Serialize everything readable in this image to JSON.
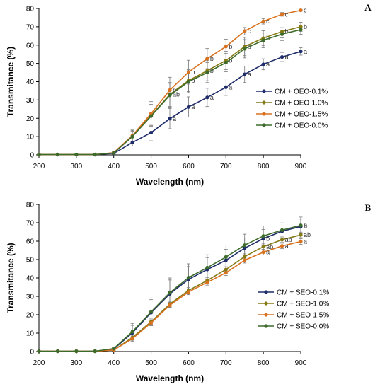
{
  "chart_data": [
    {
      "type": "line",
      "panel_label": "A",
      "xlabel": "Wavelength (nm)",
      "ylabel": "Transmitance (%)",
      "xlim": [
        200,
        900
      ],
      "ylim": [
        0,
        80
      ],
      "x_ticks": [
        "200",
        "300",
        "400",
        "500",
        "600",
        "700",
        "800",
        "900"
      ],
      "y_ticks": [
        "0",
        "10",
        "20",
        "30",
        "40",
        "50",
        "60",
        "70",
        "80"
      ],
      "grid": false,
      "legend_position": "right-middle",
      "x": [
        200,
        250,
        300,
        350,
        400,
        450,
        500,
        550,
        600,
        650,
        700,
        750,
        800,
        850,
        900
      ],
      "series": [
        {
          "name": "CM + OEO-0.1%",
          "color": "#1f2d6b",
          "values": [
            0.2,
            0.2,
            0.2,
            0.2,
            0.8,
            6.8,
            12.2,
            19.8,
            26.2,
            31.4,
            37.0,
            44.0,
            49.5,
            53.5,
            56.5
          ],
          "errors": [
            0,
            0,
            0,
            0,
            0.5,
            2.0,
            4.5,
            5.5,
            5.5,
            5.0,
            4.5,
            4.5,
            3.0,
            2.5,
            2.0
          ],
          "sig_labels": [
            "",
            "",
            "",
            "",
            "",
            "",
            "",
            "a",
            "a",
            "a",
            "a",
            "a",
            "a",
            "a",
            "a"
          ]
        },
        {
          "name": "CM + OEO-1.0%",
          "color": "#857a14",
          "values": [
            0.2,
            0.2,
            0.2,
            0.2,
            1.2,
            10.2,
            21.6,
            33.0,
            40.6,
            46.0,
            51.6,
            59.2,
            63.8,
            67.4,
            70.0
          ],
          "errors": [
            0,
            0,
            0,
            0,
            0.5,
            3.0,
            6.0,
            6.5,
            6.0,
            5.5,
            5.0,
            5.0,
            4.0,
            3.5,
            2.5
          ],
          "sig_labels": [
            "",
            "",
            "",
            "",
            "",
            "",
            "",
            "ab",
            "b",
            "b",
            "b",
            "b",
            "b",
            "b",
            "b"
          ]
        },
        {
          "name": "CM + OEO-1.5%",
          "color": "#d9721f",
          "values": [
            0.2,
            0.2,
            0.2,
            0.2,
            1.2,
            10.6,
            22.6,
            35.4,
            45.2,
            52.6,
            59.2,
            67.6,
            73.0,
            76.8,
            79.0
          ],
          "errors": [
            0,
            0,
            0,
            0,
            0.5,
            3.0,
            6.5,
            7.0,
            6.5,
            5.5,
            4.0,
            2.0,
            1.5,
            1.0,
            0.5
          ],
          "sig_labels": [
            "",
            "",
            "",
            "",
            "",
            "",
            "",
            "b",
            "b",
            "b",
            "b",
            "c",
            "c",
            "c",
            "c"
          ]
        },
        {
          "name": "CM + OEO-0.0%",
          "color": "#3d6b2b",
          "values": [
            0.2,
            0.2,
            0.2,
            0.2,
            1.0,
            10.0,
            21.2,
            32.6,
            40.0,
            45.0,
            50.4,
            58.0,
            62.6,
            66.0,
            68.4
          ],
          "errors": [
            0,
            0,
            0,
            0,
            0.5,
            3.0,
            6.0,
            6.5,
            6.0,
            5.5,
            5.0,
            5.0,
            4.0,
            3.5,
            2.5
          ],
          "sig_labels": [
            "",
            "",
            "",
            "",
            "",
            "",
            "",
            "",
            "",
            "",
            "",
            "",
            "",
            "",
            ""
          ]
        }
      ]
    },
    {
      "type": "line",
      "panel_label": "B",
      "xlabel": "Wavelength (nm)",
      "ylabel": "Transmitance (%)",
      "xlim": [
        200,
        900
      ],
      "ylim": [
        0,
        80
      ],
      "x_ticks": [
        "200",
        "300",
        "400",
        "500",
        "600",
        "700",
        "800",
        "900"
      ],
      "y_ticks": [
        "0",
        "10",
        "20",
        "30",
        "40",
        "50",
        "60",
        "70",
        "80"
      ],
      "grid": false,
      "legend_position": "right-middle",
      "x": [
        200,
        250,
        300,
        350,
        400,
        450,
        500,
        550,
        600,
        650,
        700,
        750,
        800,
        850,
        900
      ],
      "series": [
        {
          "name": "CM + SEO-0.1%",
          "color": "#1f2d6b",
          "values": [
            0.2,
            0.2,
            0.2,
            0.2,
            1.4,
            10.2,
            21.2,
            31.4,
            39.2,
            44.6,
            49.6,
            56.2,
            61.4,
            65.4,
            68.0
          ],
          "errors": [
            0,
            0,
            0,
            0,
            0.5,
            4.0,
            7.0,
            7.5,
            7.0,
            6.5,
            6.0,
            5.5,
            5.0,
            4.5,
            4.0
          ],
          "sig_labels": [
            "",
            "",
            "",
            "",
            "",
            "",
            "",
            "",
            "",
            "",
            "",
            "",
            "b",
            "",
            "b"
          ]
        },
        {
          "name": "CM + SEO-1.0%",
          "color": "#857a14",
          "values": [
            0.2,
            0.2,
            0.2,
            0.2,
            0.8,
            7.6,
            16.2,
            25.8,
            33.2,
            38.6,
            44.6,
            51.6,
            57.0,
            60.8,
            63.4
          ],
          "errors": [
            0,
            0,
            0,
            0,
            0.5,
            1.5,
            1.5,
            1.5,
            1.5,
            1.5,
            1.5,
            1.5,
            1.5,
            1.5,
            1.5
          ],
          "sig_labels": [
            "",
            "",
            "",
            "",
            "",
            "",
            "",
            "",
            "",
            "",
            "",
            "",
            "ab",
            "ab",
            "ab"
          ]
        },
        {
          "name": "CM + SEO-1.5%",
          "color": "#d9721f",
          "values": [
            0.2,
            0.2,
            0.2,
            0.2,
            0.8,
            7.0,
            15.6,
            25.2,
            32.4,
            37.6,
            42.8,
            49.6,
            54.0,
            57.4,
            59.8
          ],
          "errors": [
            0,
            0,
            0,
            0,
            0.5,
            1.5,
            1.5,
            1.5,
            1.5,
            1.5,
            1.5,
            1.5,
            1.5,
            1.5,
            1.5
          ],
          "sig_labels": [
            "",
            "",
            "",
            "",
            "",
            "",
            "",
            "",
            "",
            "",
            "",
            "",
            "a",
            "a",
            "a"
          ]
        },
        {
          "name": "CM + SEO-0.0%",
          "color": "#3d6b2b",
          "values": [
            0.2,
            0.2,
            0.2,
            0.2,
            1.6,
            10.8,
            21.6,
            32.0,
            40.2,
            45.6,
            51.4,
            57.8,
            62.8,
            66.0,
            68.6
          ],
          "errors": [
            0,
            0,
            0,
            0,
            0.5,
            4.5,
            7.5,
            8.0,
            7.5,
            7.0,
            6.5,
            6.0,
            5.5,
            5.0,
            4.5
          ],
          "sig_labels": [
            "",
            "",
            "",
            "",
            "",
            "",
            "",
            "",
            "",
            "",
            "",
            "",
            "",
            "",
            "b"
          ]
        }
      ]
    }
  ]
}
